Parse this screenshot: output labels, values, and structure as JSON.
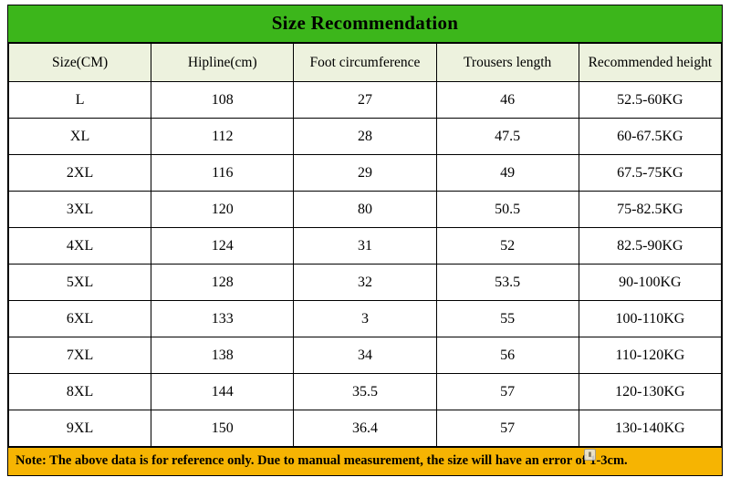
{
  "chart_data": {
    "type": "table",
    "title": "Size Recommendation",
    "columns": [
      "Size(CM)",
      "Hipline(cm)",
      "Foot circumference",
      "Trousers length",
      "Recommended height"
    ],
    "rows": [
      [
        "L",
        "108",
        "27",
        "46",
        "52.5-60KG"
      ],
      [
        "XL",
        "112",
        "28",
        "47.5",
        "60-67.5KG"
      ],
      [
        "2XL",
        "116",
        "29",
        "49",
        "67.5-75KG"
      ],
      [
        "3XL",
        "120",
        "80",
        "50.5",
        "75-82.5KG"
      ],
      [
        "4XL",
        "124",
        "31",
        "52",
        "82.5-90KG"
      ],
      [
        "5XL",
        "128",
        "32",
        "53.5",
        "90-100KG"
      ],
      [
        "6XL",
        "133",
        "3",
        "55",
        "100-110KG"
      ],
      [
        "7XL",
        "138",
        "34",
        "56",
        "110-120KG"
      ],
      [
        "8XL",
        "144",
        "35.5",
        "57",
        "120-130KG"
      ],
      [
        "9XL",
        "150",
        "36.4",
        "57",
        "130-140KG"
      ]
    ],
    "note": "Note: The above data is for reference only. Due to manual measurement, the size will have an error of 1-3cm.",
    "layout": {
      "grid": "full-borders",
      "header_row": true,
      "title_position": "top"
    }
  },
  "colors": {
    "title_bg": "#3cb61b",
    "header_row_bg": "#edf2de",
    "note_bg": "#f6b402",
    "border": "#000000",
    "text": "#000000",
    "page_bg": "#ffffff"
  }
}
